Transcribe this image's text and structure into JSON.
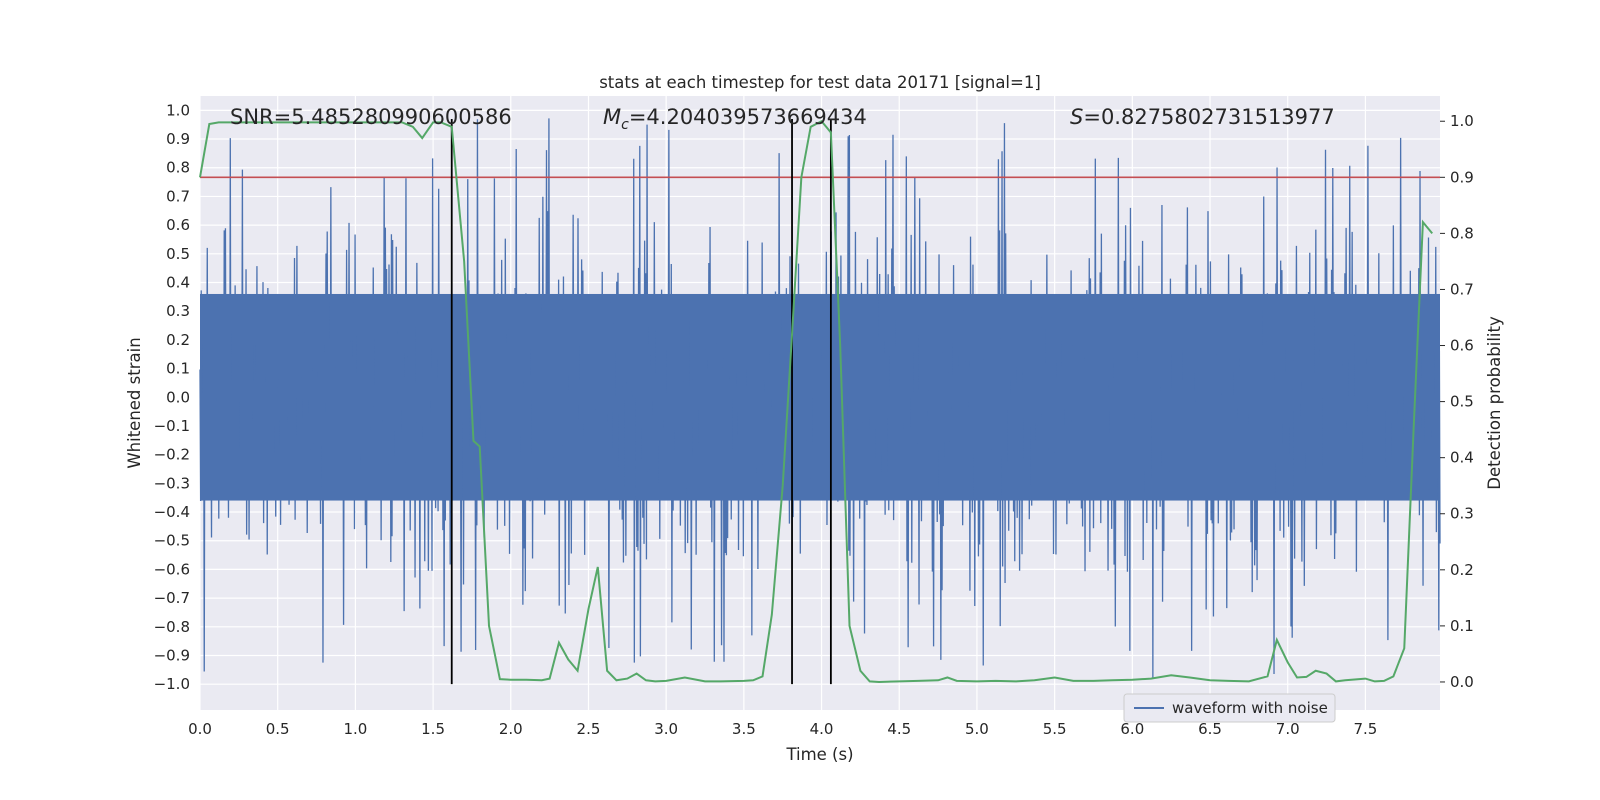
{
  "chart_data": {
    "type": "line",
    "title": "stats at each timestep for test data 20171 [signal=1]",
    "xlabel": "Time (s)",
    "ylabel_left": "Whitened strain",
    "ylabel_right": "Detection probability",
    "xlim": [
      0.0,
      7.98
    ],
    "ylim_left": [
      -1.09,
      1.05
    ],
    "ylim_right": [
      -0.05,
      1.045
    ],
    "x_ticks": [
      "0.0",
      "0.5",
      "1.0",
      "1.5",
      "2.0",
      "2.5",
      "3.0",
      "3.5",
      "4.0",
      "4.5",
      "5.0",
      "5.5",
      "6.0",
      "6.5",
      "7.0",
      "7.5"
    ],
    "y_ticks_left": [
      "1.0",
      "0.9",
      "0.8",
      "0.7",
      "0.6",
      "0.5",
      "0.4",
      "0.3",
      "0.2",
      "0.1",
      "0.0",
      "-0.1",
      "-0.2",
      "-0.3",
      "-0.4",
      "-0.5",
      "-0.6",
      "-0.7",
      "-0.8",
      "-0.9",
      "-1.0"
    ],
    "y_ticks_right": [
      "1.0",
      "0.9",
      "0.8",
      "0.7",
      "0.6",
      "0.5",
      "0.4",
      "0.3",
      "0.2",
      "0.1",
      "0.0"
    ],
    "annotations": {
      "snr": "SNR=5.485280990600586",
      "mc_symbol": "M",
      "mc_sub": "c",
      "mc_value": "=4.204039573669434",
      "s_symbol": "S",
      "s_value": "=0.8275802731513977"
    },
    "threshold": {
      "value": 0.9,
      "axis": "right",
      "color": "#c44e52"
    },
    "vlines": [
      1.62,
      3.81,
      4.06
    ],
    "vline_range_left": [
      -1.0,
      0.97
    ],
    "legend": {
      "label": "waveform with noise",
      "location": "bottom-right"
    },
    "waveform": {
      "name": "waveform with noise",
      "color": "#4c72b0",
      "samples": 2048,
      "core_amplitude": 0.36,
      "max_positive": 0.96,
      "max_negative": -0.99
    },
    "probability": {
      "color": "#55a868",
      "x": [
        0.0,
        0.06,
        0.12,
        0.18,
        0.25,
        0.3,
        0.4,
        0.5,
        0.6,
        0.7,
        0.8,
        0.9,
        1.0,
        1.1,
        1.2,
        1.3,
        1.37,
        1.43,
        1.5,
        1.55,
        1.62,
        1.7,
        1.76,
        1.8,
        1.86,
        1.93,
        2.0,
        2.1,
        2.2,
        2.25,
        2.31,
        2.37,
        2.43,
        2.5,
        2.56,
        2.62,
        2.68,
        2.75,
        2.81,
        2.87,
        2.93,
        3.0,
        3.12,
        3.25,
        3.35,
        3.5,
        3.56,
        3.62,
        3.68,
        3.75,
        3.81,
        3.87,
        3.93,
        4.0,
        4.06,
        4.12,
        4.18,
        4.25,
        4.31,
        4.37,
        4.5,
        4.62,
        4.75,
        4.81,
        4.87,
        5.0,
        5.12,
        5.25,
        5.37,
        5.5,
        5.62,
        5.75,
        5.87,
        6.0,
        6.12,
        6.25,
        6.31,
        6.37,
        6.5,
        6.62,
        6.75,
        6.87,
        6.93,
        7.0,
        7.06,
        7.12,
        7.18,
        7.25,
        7.31,
        7.37,
        7.5,
        7.56,
        7.62,
        7.68,
        7.75,
        7.81,
        7.87,
        7.93
      ],
      "y": [
        0.9,
        0.995,
        0.998,
        0.998,
        0.998,
        0.998,
        0.998,
        0.998,
        0.998,
        0.998,
        0.998,
        0.998,
        0.998,
        0.998,
        0.998,
        0.998,
        0.99,
        0.97,
        0.998,
        0.998,
        0.99,
        0.75,
        0.43,
        0.42,
        0.1,
        0.005,
        0.004,
        0.004,
        0.003,
        0.006,
        0.07,
        0.04,
        0.02,
        0.13,
        0.205,
        0.02,
        0.003,
        0.006,
        0.015,
        0.003,
        0.001,
        0.002,
        0.008,
        0.001,
        0.001,
        0.002,
        0.003,
        0.01,
        0.12,
        0.35,
        0.62,
        0.9,
        0.99,
        1.0,
        0.98,
        0.6,
        0.1,
        0.02,
        0.001,
        0.0,
        0.001,
        0.002,
        0.003,
        0.008,
        0.002,
        0.001,
        0.002,
        0.001,
        0.003,
        0.008,
        0.002,
        0.002,
        0.003,
        0.004,
        0.006,
        0.012,
        0.01,
        0.008,
        0.003,
        0.002,
        0.001,
        0.01,
        0.075,
        0.035,
        0.008,
        0.009,
        0.02,
        0.015,
        0.001,
        0.003,
        0.006,
        0.001,
        0.002,
        0.01,
        0.06,
        0.45,
        0.82,
        0.8
      ]
    }
  }
}
